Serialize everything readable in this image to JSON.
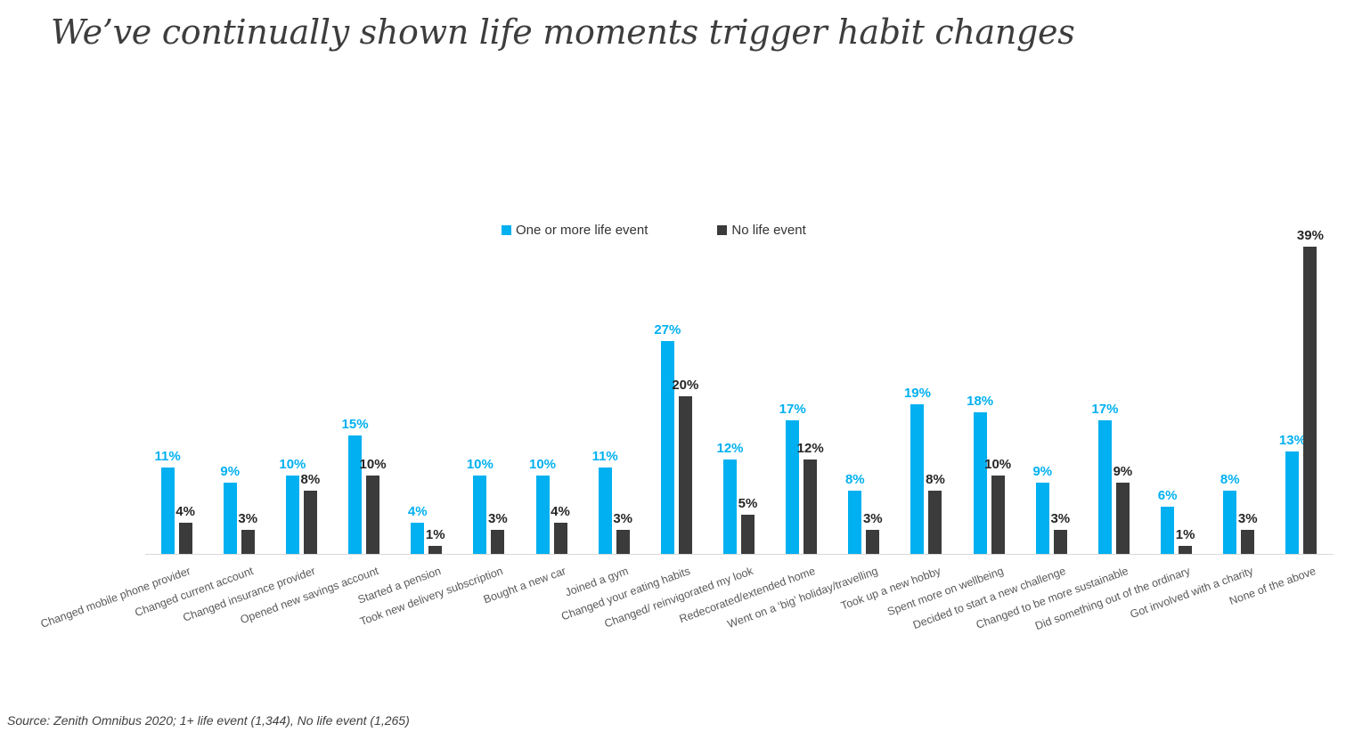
{
  "title": "We’ve continually shown life moments trigger habit changes",
  "source": "Source: Zenith Omnibus 2020; 1+ life event (1,344), No life event (1,265)",
  "legend": {
    "items": [
      {
        "label": "One or more life event",
        "color": "#00b0f0"
      },
      {
        "label": "No life event",
        "color": "#3b3b3b"
      }
    ]
  },
  "chart_data": {
    "type": "bar",
    "title": "We’ve continually shown life moments trigger habit changes",
    "xlabel": "",
    "ylabel": "",
    "ylim": [
      0,
      41
    ],
    "grid": false,
    "legend_position": "top-center",
    "value_suffix": "%",
    "value_label_color_dark": "#262626",
    "axis_color": "#d9d9d9",
    "categories": [
      "Changed mobile phone provider",
      "Changed current account",
      "Changed insurance provider",
      "Opened new savings account",
      "Started a pension",
      "Took new delivery subscription",
      "Bought a new car",
      "Joined a gym",
      "Changed your eating habits",
      "Changed/ reinvigorated my look",
      "Redecorated/extended home",
      "Went on a ‘big’ holiday/travelling",
      "Took up a new hobby",
      "Spent more on wellbeing",
      "Decided to start a new challenge",
      "Changed to be more sustainable",
      "Did something out of the ordinary",
      "Got involved with a charity",
      "None of the above"
    ],
    "series": [
      {
        "name": "One or more life event",
        "color": "#00b0f0",
        "values": [
          11,
          9,
          10,
          15,
          4,
          10,
          10,
          11,
          27,
          12,
          17,
          8,
          19,
          18,
          9,
          17,
          6,
          8,
          13
        ]
      },
      {
        "name": "No life event",
        "color": "#3b3b3b",
        "values": [
          4,
          3,
          8,
          10,
          1,
          3,
          4,
          3,
          20,
          5,
          12,
          3,
          8,
          10,
          3,
          9,
          1,
          3,
          39
        ]
      }
    ]
  }
}
